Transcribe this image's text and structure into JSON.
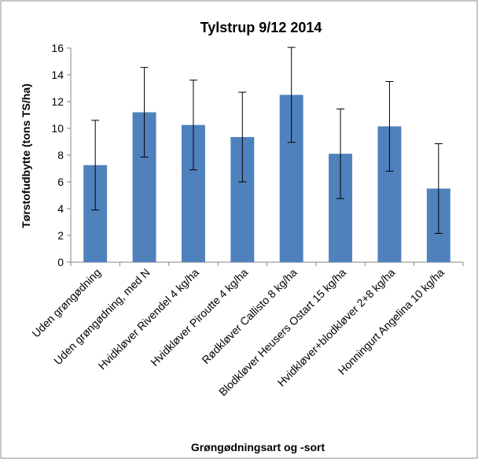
{
  "chart_data": {
    "type": "bar",
    "title": "Tylstrup 9/12 2014",
    "xlabel": "Grøngødningsart og -sort",
    "ylabel": "Tørstofudbytte (tons TS/ha)",
    "ylim": [
      0,
      16
    ],
    "yticks": [
      "0",
      "2",
      "4",
      "6",
      "8",
      "10",
      "12",
      "14",
      "16"
    ],
    "categories": [
      "Uden grøngødning",
      "Uden grøngødning, med N",
      "Hvidkløver Rivendel 4 kg/ha",
      "Hvidkløver Piroutte 4 kg/ha",
      "Rødkløver Callisto 8 kg/ha",
      "Blodkløver Heusers Ostart 15 kg/ha",
      "Hvidkløver+blodkløver 2+8 kg/ha",
      "Honningurt Angelina 10 kg/ha"
    ],
    "values": [
      7.25,
      11.2,
      10.25,
      9.35,
      12.5,
      8.1,
      10.15,
      5.5
    ],
    "error_bars": [
      3.35,
      3.35,
      3.35,
      3.35,
      3.55,
      3.35,
      3.35,
      3.35
    ],
    "grid": false,
    "legend": "none",
    "bar_color": "#4f81bd",
    "background_color": "#ffffff"
  }
}
